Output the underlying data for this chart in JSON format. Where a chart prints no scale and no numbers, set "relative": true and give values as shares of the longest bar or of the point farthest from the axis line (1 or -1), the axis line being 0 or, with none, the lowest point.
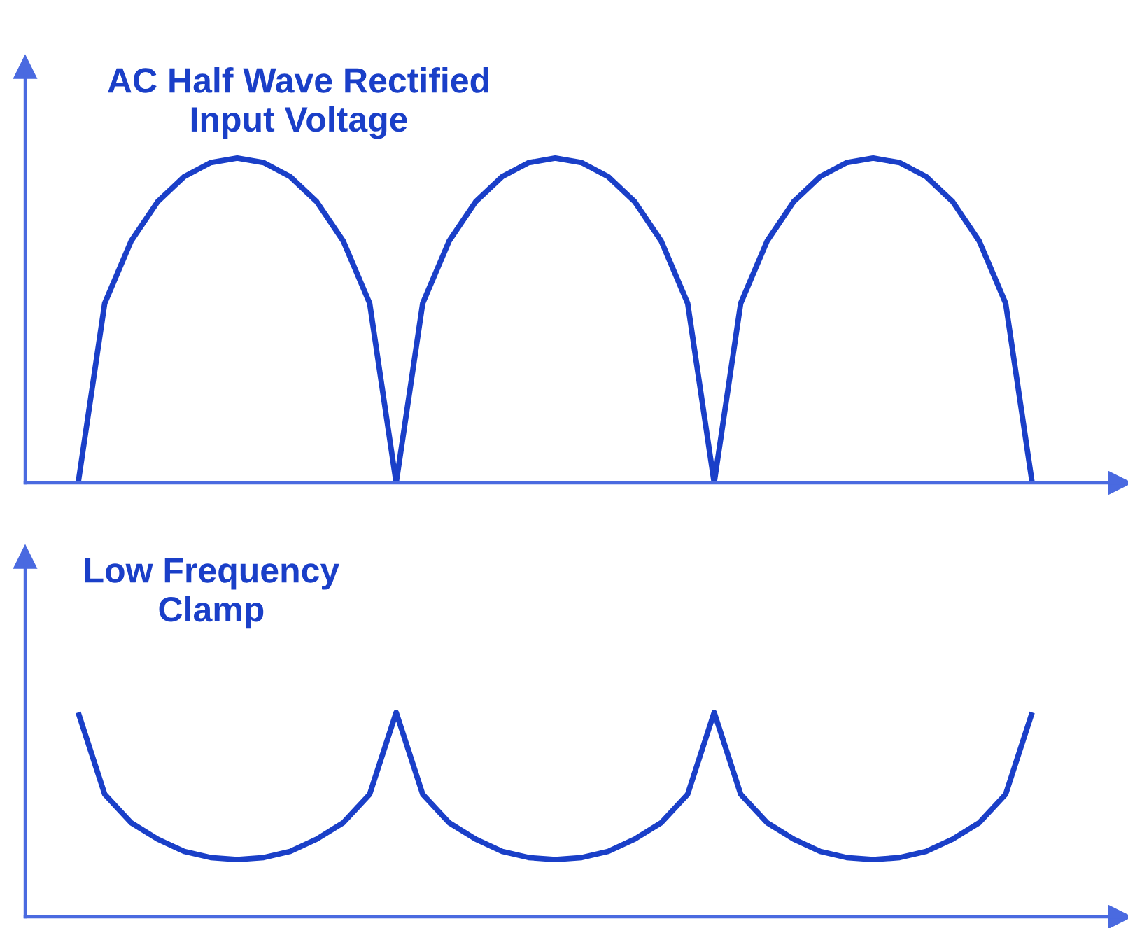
{
  "chart_data": [
    {
      "type": "line",
      "title": "AC Half Wave Rectified\nInput Voltage",
      "relative": true,
      "legend": false,
      "categories": [
        null,
        null,
        null,
        null,
        null,
        null,
        null,
        null,
        null,
        null,
        null,
        null,
        null,
        null,
        null,
        null,
        null,
        null,
        null,
        null,
        null,
        null,
        null,
        null,
        null,
        null,
        null,
        null,
        null,
        null,
        null,
        null,
        null,
        null,
        null,
        null,
        null
      ],
      "series": [
        {
          "color": "#1a3fc8",
          "values": [
            0,
            0.553,
            0.745,
            0.866,
            0.943,
            0.986,
            1,
            0.986,
            0.943,
            0.866,
            0.745,
            0.553,
            0,
            0.553,
            0.745,
            0.866,
            0.943,
            0.986,
            1,
            0.986,
            0.943,
            0.866,
            0.745,
            0.553,
            0,
            0.553,
            0.745,
            0.866,
            0.943,
            0.986,
            1,
            0.986,
            0.943,
            0.866,
            0.745,
            0.553,
            0
          ]
        }
      ]
    },
    {
      "type": "line",
      "title": "Low Frequency\nClamp",
      "relative": true,
      "legend": false,
      "categories": [
        null,
        null,
        null,
        null,
        null,
        null,
        null,
        null,
        null,
        null,
        null,
        null,
        null,
        null,
        null,
        null,
        null,
        null,
        null,
        null,
        null,
        null,
        null,
        null,
        null,
        null,
        null,
        null,
        null,
        null,
        null,
        null,
        null,
        null,
        null,
        null,
        null
      ],
      "series": [
        {
          "color": "#1a3fc8",
          "values": [
            1,
            0.6,
            0.46,
            0.38,
            0.32,
            0.29,
            0.28,
            0.29,
            0.32,
            0.38,
            0.46,
            0.6,
            1,
            0.6,
            0.46,
            0.38,
            0.32,
            0.29,
            0.28,
            0.29,
            0.32,
            0.38,
            0.46,
            0.6,
            1,
            0.6,
            0.46,
            0.38,
            0.32,
            0.29,
            0.28,
            0.29,
            0.32,
            0.38,
            0.46,
            0.6,
            1
          ]
        }
      ]
    }
  ]
}
